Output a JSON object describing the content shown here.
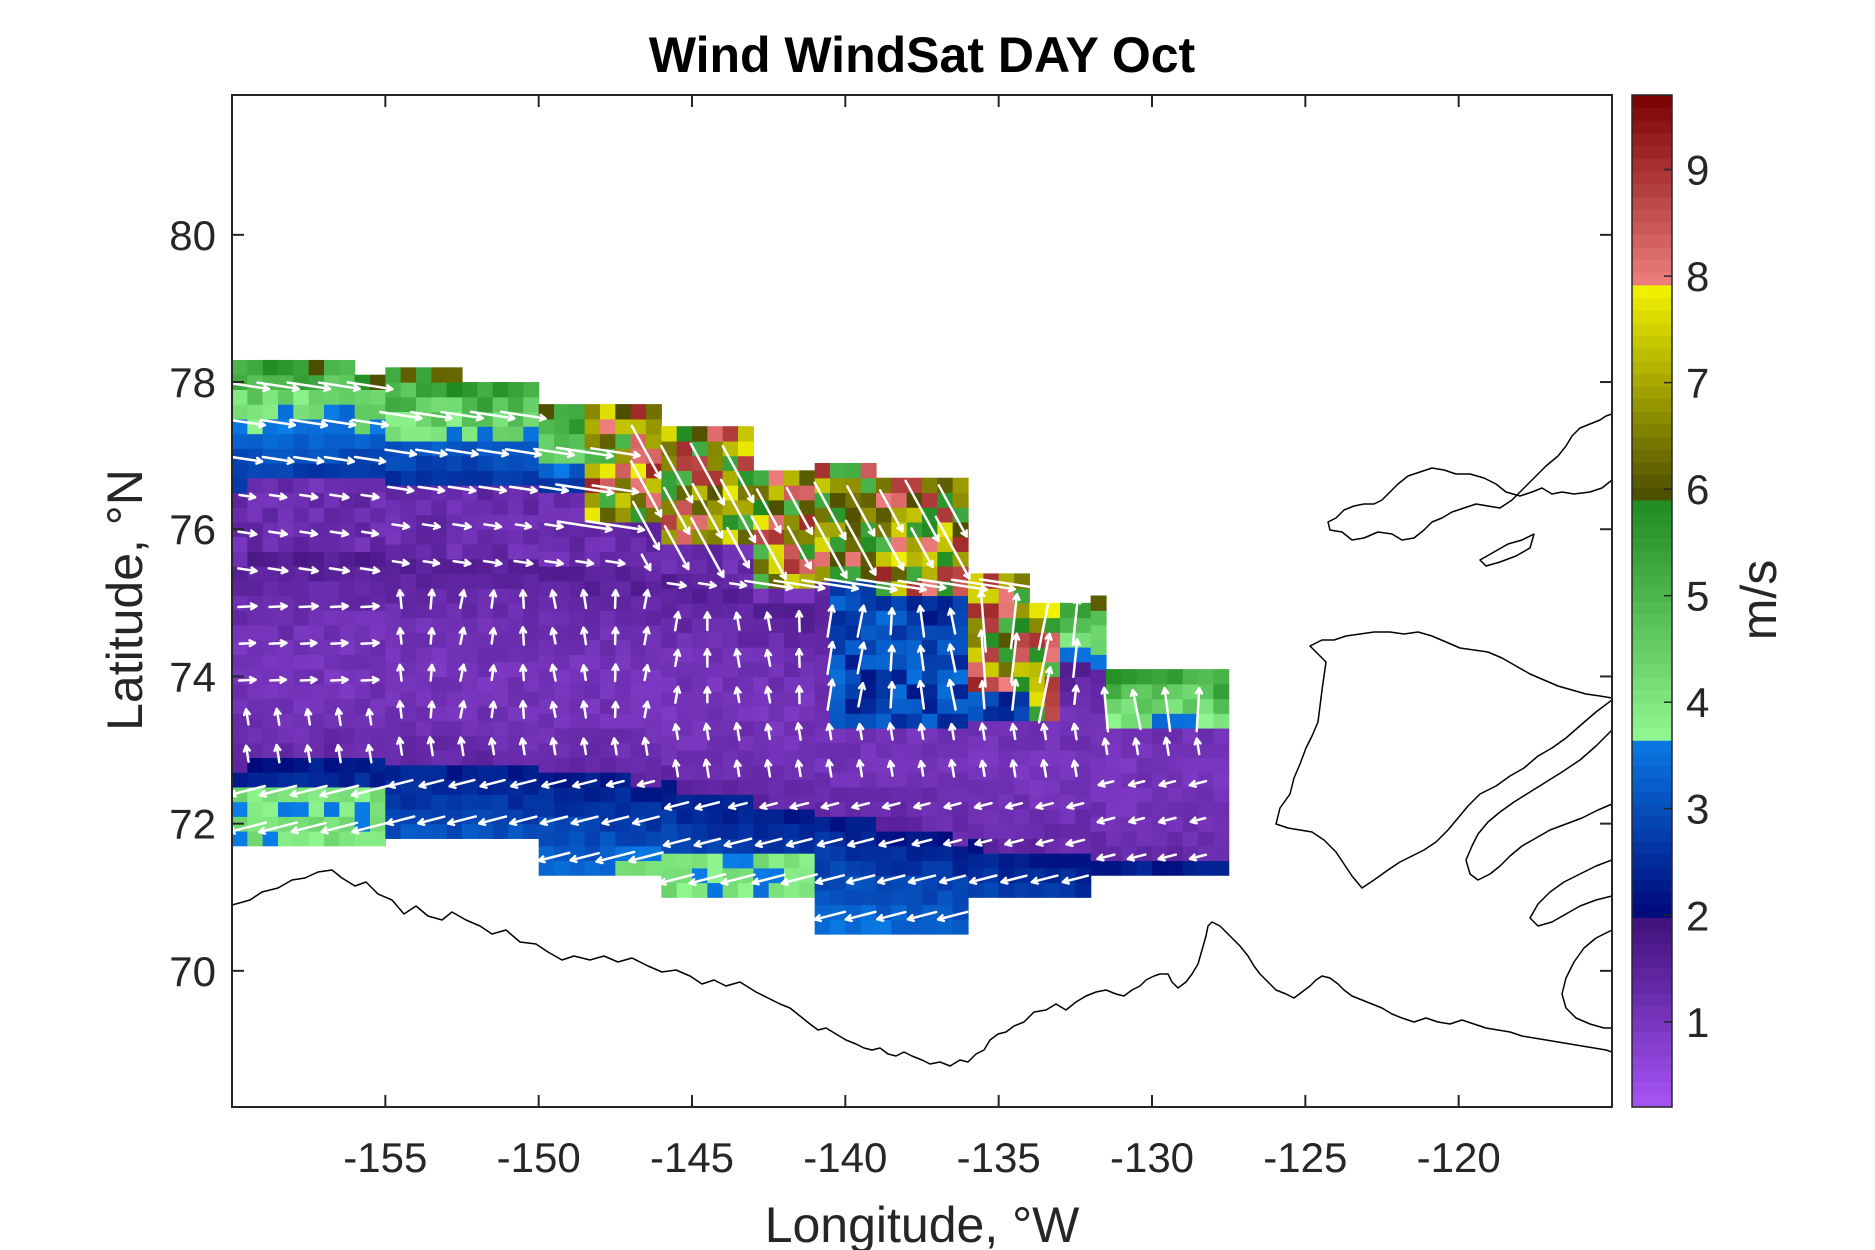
{
  "chart_data": {
    "type": "heatmap",
    "title": "Wind WindSat DAY Oct",
    "xlabel": "Longitude, °W",
    "ylabel": "Latitude, °N",
    "xlim": [
      -160,
      -115
    ],
    "ylim": [
      68.15,
      81.9
    ],
    "xticks": [
      -155,
      -150,
      -145,
      -140,
      -135,
      -130,
      -125,
      -120
    ],
    "xtick_labels": [
      "-155",
      "-150",
      "-145",
      "-140",
      "-135",
      "-130",
      "-125",
      "-120"
    ],
    "yticks": [
      70,
      72,
      74,
      76,
      78,
      80
    ],
    "ytick_labels": [
      "70",
      "72",
      "74",
      "76",
      "78",
      "80"
    ],
    "colorbar": {
      "label": "m/s",
      "range": [
        0.2,
        9.7
      ],
      "ticks": [
        1,
        2,
        3,
        4,
        5,
        6,
        7,
        8,
        9
      ],
      "tick_labels": [
        "1",
        "2",
        "3",
        "4",
        "5",
        "6",
        "7",
        "8",
        "9"
      ],
      "segments": [
        {
          "from": 0.2,
          "to": 2.0,
          "from_color": "#a855f7",
          "to_color": "#3d0f78"
        },
        {
          "from": 2.0,
          "to": 3.7,
          "from_color": "#00087a",
          "to_color": "#0a7ee8"
        },
        {
          "from": 3.7,
          "to": 5.9,
          "from_color": "#8ff58f",
          "to_color": "#1f8a1f"
        },
        {
          "from": 5.9,
          "to": 7.9,
          "from_color": "#4a4a00",
          "to_color": "#f2f200"
        },
        {
          "from": 7.9,
          "to": 9.7,
          "from_color": "#f08080",
          "to_color": "#7a0000"
        }
      ]
    },
    "grid": false,
    "field": {
      "description_units": "wind speed in m/s over gridded cells; arrows show wind direction",
      "lon_range": [
        -160,
        -127.5
      ],
      "lat_range": [
        70.4,
        78.4
      ]
    }
  }
}
